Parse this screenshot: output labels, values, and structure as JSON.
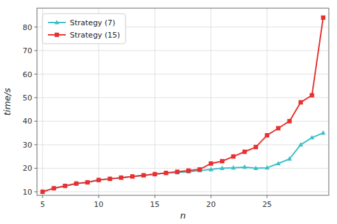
{
  "chart_data": {
    "type": "line",
    "xlabel": "n",
    "ylabel": "time/s",
    "x": [
      5,
      6,
      7,
      8,
      9,
      10,
      11,
      12,
      13,
      14,
      15,
      16,
      17,
      18,
      19,
      20,
      21,
      22,
      23,
      24,
      25,
      26,
      27,
      28,
      29,
      30
    ],
    "series": [
      {
        "name": "Strategy (7)",
        "color": "#3dbfc8",
        "marker": "triangle",
        "values": [
          10,
          11.5,
          12.5,
          13.5,
          14,
          15,
          15.5,
          16,
          16.5,
          17,
          17.5,
          18,
          18.2,
          18.5,
          19,
          19.5,
          20,
          20.2,
          20.5,
          20,
          20.2,
          22,
          24,
          30,
          33,
          35
        ]
      },
      {
        "name": "Strategy (15)",
        "color": "#e83030",
        "marker": "square",
        "values": [
          10,
          11.5,
          12.5,
          13.5,
          14,
          15,
          15.5,
          16,
          16.5,
          17,
          17.5,
          18,
          18.5,
          19,
          19.5,
          22,
          23,
          25,
          27,
          29,
          34,
          37,
          40,
          48,
          51,
          84
        ]
      }
    ],
    "xlim": [
      4.5,
      30.5
    ],
    "ylim": [
      8.5,
      88
    ],
    "xticks": [
      5,
      10,
      15,
      20,
      25
    ],
    "yticks": [
      10,
      20,
      30,
      40,
      50,
      60,
      70,
      80
    ],
    "grid": true,
    "legend": "upper left"
  }
}
